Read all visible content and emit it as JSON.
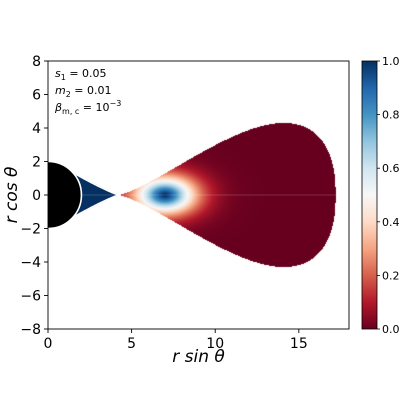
{
  "chart_data": {
    "type": "heatmap",
    "title": "",
    "xlabel": "r sin θ",
    "ylabel": "r cos θ",
    "xlim": [
      0,
      18
    ],
    "ylim": [
      -8,
      8
    ],
    "x_ticks": [
      0,
      5,
      10,
      15
    ],
    "y_ticks": [
      -8,
      -6,
      -4,
      -2,
      0,
      2,
      4,
      6,
      8
    ],
    "grid": false,
    "colorbar": {
      "range": [
        0.0,
        1.0
      ],
      "ticks": [
        0.0,
        0.2,
        0.4,
        0.6,
        0.8,
        1.0
      ],
      "tick_labels": [
        "0.0",
        "0.2",
        "0.4",
        "0.6",
        "0.8",
        "1.0"
      ],
      "colormap": "RdBu",
      "colors": [
        "#67001f",
        "#b2182b",
        "#d6604d",
        "#f4a582",
        "#fddbc7",
        "#f7f7f7",
        "#d1e5f0",
        "#92c5de",
        "#4393c3",
        "#2166ac",
        "#053061"
      ],
      "placement": "right"
    },
    "annotations": [
      {
        "name": "s",
        "sub": "1",
        "value": "= 0.05"
      },
      {
        "name": "m",
        "sub": "2",
        "value": "= 0.01"
      },
      {
        "name": "β",
        "sub": "m, c",
        "value": "= 10",
        "sup": "−3"
      }
    ],
    "regions": {
      "central_body": {
        "shape": "half-disk",
        "radius": 2.0,
        "color": "#000000",
        "outline": "#ffffff"
      },
      "inner_region": {
        "x_from": 0.4,
        "x_to": 4.2,
        "half_height_at_base": 1.95,
        "value": 1.0
      },
      "outer_torus": {
        "cusp_x": 4.2,
        "max_x": 17.2,
        "max_half_height": 4.3,
        "peak_x": 7.0,
        "peak_value": 1.0,
        "edge_value": 0.0
      }
    }
  }
}
